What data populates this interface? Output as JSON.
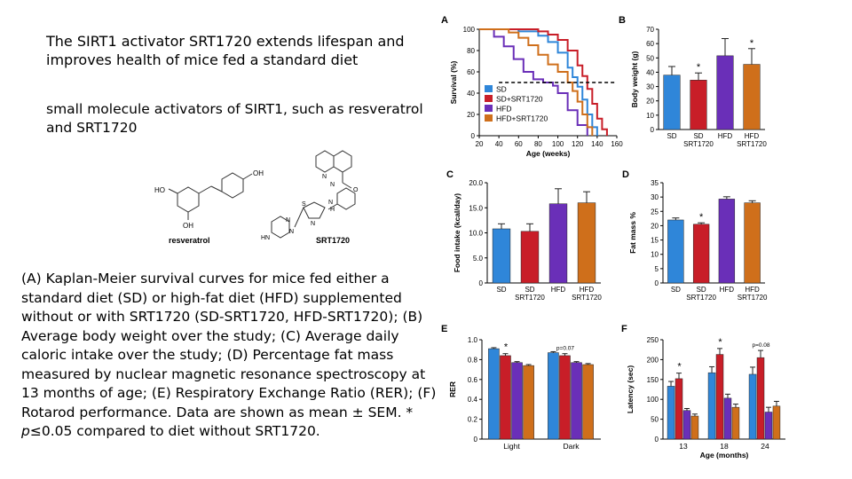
{
  "slide": {
    "title": "The SIRT1 activator SRT1720 extends lifespan and improves health of mice fed a standard diet",
    "subtitle": "small molecule activators of SIRT1, such as resveratrol and SRT1720",
    "caption_parts": {
      "main": "(A) Kaplan-Meier survival curves for mice fed either a standard diet (SD) or high-fat diet (HFD) supplemented without or with SRT1720 (SD-SRT1720, HFD-SRT1720); (B) Average body weight over the study; (C) Average daily caloric intake over the study; (D) Percentage fat mass measured by nuclear magnetic resonance spectroscopy at 13 months of age; (E) Respiratory Exchange Ratio (RER); (F) Rotarod performance. Data are shown as mean ± SEM. * ",
      "p": "p",
      "tail": "≤0.05 compared to diet without SRT1720."
    }
  },
  "structures": {
    "resveratrol": {
      "name": "resveratrol",
      "labels": [
        "HO",
        "OH",
        "OH"
      ]
    },
    "srt1720": {
      "name": "SRT1720",
      "labels": [
        "N",
        "N",
        "O",
        "N",
        "H",
        "S",
        "N",
        "N",
        "HN",
        "N"
      ]
    }
  },
  "colors": {
    "SD": "#2f86d9",
    "SD+SRT1720": "#c81e28",
    "HFD": "#6a2fb8",
    "HFD+SRT1720": "#cf6f1b",
    "grid": "#000000"
  },
  "chart_data": [
    {
      "panel": "A",
      "type": "line",
      "xlabel": "Age (weeks)",
      "ylabel": "Survival (%)",
      "xlim": [
        20,
        160
      ],
      "ylim": [
        0,
        100
      ],
      "xticks": [
        "20",
        "40",
        "60",
        "80",
        "100",
        "120",
        "140",
        "160"
      ],
      "yticks": [
        "0",
        "20",
        "40",
        "60",
        "80",
        "100"
      ],
      "median_line": 50,
      "legend": [
        "SD",
        "SD+SRT1720",
        "HFD",
        "HFD+SRT1720"
      ],
      "series": [
        {
          "name": "SD",
          "x": [
            20,
            60,
            80,
            90,
            100,
            110,
            115,
            120,
            125,
            130,
            135,
            140
          ],
          "y": [
            100,
            98,
            94,
            88,
            78,
            64,
            55,
            46,
            34,
            20,
            8,
            0
          ]
        },
        {
          "name": "SD+SRT1720",
          "x": [
            20,
            60,
            80,
            90,
            100,
            110,
            120,
            125,
            130,
            135,
            140,
            145,
            150
          ],
          "y": [
            100,
            100,
            98,
            95,
            90,
            80,
            66,
            56,
            44,
            30,
            16,
            6,
            0
          ]
        },
        {
          "name": "HFD",
          "x": [
            20,
            35,
            45,
            55,
            65,
            75,
            85,
            95,
            100,
            110,
            120,
            130
          ],
          "y": [
            100,
            93,
            84,
            72,
            60,
            53,
            50,
            47,
            40,
            24,
            10,
            0
          ]
        },
        {
          "name": "HFD+SRT1720",
          "x": [
            20,
            50,
            60,
            70,
            80,
            90,
            100,
            110,
            115,
            120,
            125,
            130,
            135
          ],
          "y": [
            100,
            97,
            92,
            85,
            76,
            67,
            60,
            50,
            42,
            32,
            20,
            8,
            0
          ]
        }
      ]
    },
    {
      "panel": "B",
      "type": "bar",
      "ylabel": "Body weight (g)",
      "ylim": [
        0,
        70
      ],
      "yticks": [
        "0",
        "10",
        "20",
        "30",
        "40",
        "50",
        "60",
        "70"
      ],
      "categories": [
        "SD",
        "SD SRT1720",
        "HFD",
        "HFD SRT1720"
      ],
      "tick_labels": [
        [
          "SD",
          ""
        ],
        [
          "SD",
          "SRT1720"
        ],
        [
          "HFD",
          ""
        ],
        [
          "HFD",
          "SRT1720"
        ]
      ],
      "values": [
        38,
        34.5,
        51.5,
        45.5
      ],
      "errors": [
        6,
        5,
        12,
        11
      ],
      "significance": [
        "",
        "*",
        "",
        "*"
      ]
    },
    {
      "panel": "C",
      "type": "bar",
      "ylabel": "Food intake (kcal/day)",
      "ylim": [
        0,
        20
      ],
      "yticks": [
        "0",
        "5.0",
        "10.0",
        "15.0",
        "20.0"
      ],
      "categories": [
        "SD",
        "SD SRT1720",
        "HFD",
        "HFD SRT1720"
      ],
      "tick_labels": [
        [
          "SD",
          ""
        ],
        [
          "SD",
          "SRT1720"
        ],
        [
          "HFD",
          ""
        ],
        [
          "HFD",
          "SRT1720"
        ]
      ],
      "values": [
        10.8,
        10.3,
        15.8,
        16.0
      ],
      "errors": [
        1.0,
        1.5,
        3.0,
        2.2
      ],
      "significance": [
        "",
        "",
        "",
        ""
      ]
    },
    {
      "panel": "D",
      "type": "bar",
      "ylabel": "Fat mass %",
      "ylim": [
        0,
        35
      ],
      "yticks": [
        "0",
        "5",
        "10",
        "15",
        "20",
        "25",
        "30",
        "35"
      ],
      "categories": [
        "SD",
        "SD SRT1720",
        "HFD",
        "HFD SRT1720"
      ],
      "tick_labels": [
        [
          "SD",
          ""
        ],
        [
          "SD",
          "SRT1720"
        ],
        [
          "HFD",
          ""
        ],
        [
          "HFD",
          "SRT1720"
        ]
      ],
      "values": [
        22,
        20.5,
        29.3,
        28
      ],
      "errors": [
        0.7,
        0.5,
        0.8,
        0.7
      ],
      "significance": [
        "",
        "*",
        "",
        ""
      ]
    },
    {
      "panel": "E",
      "type": "grouped_bar",
      "ylabel": "RER",
      "ylim": [
        0,
        1.0
      ],
      "yticks": [
        "0",
        "0.2",
        "0.4",
        "0.6",
        "0.8",
        "1.0"
      ],
      "categories": [
        "Light",
        "Dark"
      ],
      "series": [
        {
          "name": "SD",
          "values": [
            0.91,
            0.87
          ],
          "errors": [
            0.01,
            0.01
          ]
        },
        {
          "name": "SD+SRT1720",
          "values": [
            0.84,
            0.84
          ],
          "errors": [
            0.02,
            0.02
          ]
        },
        {
          "name": "HFD",
          "values": [
            0.77,
            0.77
          ],
          "errors": [
            0.01,
            0.01
          ]
        },
        {
          "name": "HFD+SRT1720",
          "values": [
            0.74,
            0.75
          ],
          "errors": [
            0.01,
            0.01
          ]
        }
      ],
      "annotations": [
        {
          "group": 0,
          "text": "*"
        },
        {
          "group": 1,
          "text": "p=0.07"
        }
      ]
    },
    {
      "panel": "F",
      "type": "grouped_bar",
      "xlabel": "Age (months)",
      "ylabel": "Latency (sec)",
      "ylim": [
        0,
        250
      ],
      "yticks": [
        "0",
        "50",
        "100",
        "150",
        "200",
        "250"
      ],
      "categories": [
        "13",
        "18",
        "24"
      ],
      "series": [
        {
          "name": "SD",
          "values": [
            133,
            167,
            163
          ],
          "errors": [
            12,
            15,
            18
          ]
        },
        {
          "name": "SD+SRT1720",
          "values": [
            152,
            213,
            205
          ],
          "errors": [
            14,
            15,
            18
          ]
        },
        {
          "name": "HFD",
          "values": [
            72,
            103,
            68
          ],
          "errors": [
            5,
            10,
            12
          ]
        },
        {
          "name": "HFD+SRT1720",
          "values": [
            58,
            80,
            83
          ],
          "errors": [
            5,
            8,
            12
          ]
        }
      ],
      "annotations": [
        {
          "group": 0,
          "text": "*"
        },
        {
          "group": 1,
          "text": "*"
        },
        {
          "group": 2,
          "text": "p=0.08"
        }
      ]
    }
  ]
}
